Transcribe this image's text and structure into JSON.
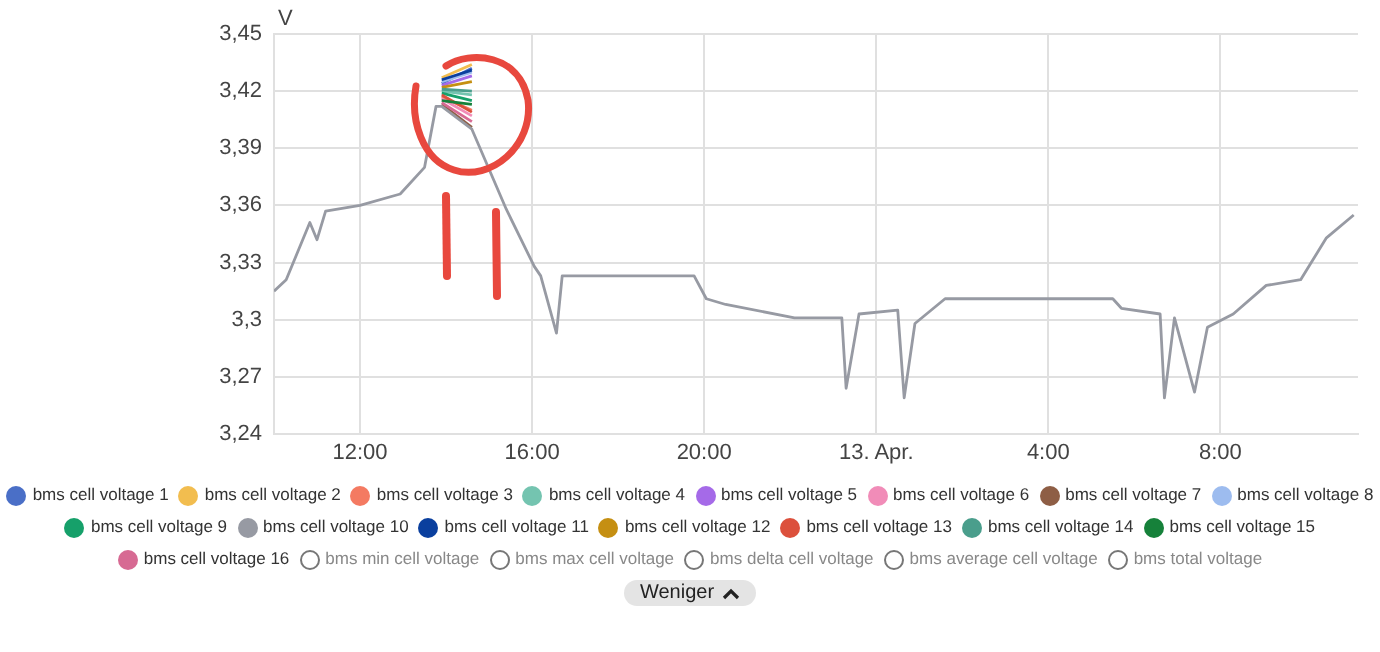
{
  "chart_data": {
    "type": "line",
    "ylabel": "V",
    "annotations": [
      "Weniger"
    ],
    "x": [
      "--04-12T10:00",
      "--04-12T10:17",
      "--04-12T10:50",
      "--04-12T11:00",
      "--04-12T11:12",
      "--04-12T12:00",
      "--04-12T12:56",
      "--04-12T13:30",
      "--04-12T13:46",
      "--04-12T13:54",
      "--04-12T14:36",
      "--04-12T15:24",
      "--04-12T16:03",
      "--04-12T16:12",
      "--04-12T16:34",
      "--04-12T16:42",
      "--04-12T19:46",
      "--04-12T20:03",
      "--04-12T20:30",
      "--04-12T22:06",
      "--04-12T23:12",
      "--04-12T23:18",
      "--04-12T23:36",
      "--04-13T00:30",
      "--04-13T00:39",
      "--04-13T00:54",
      "--04-13T01:36",
      "--04-13T05:30",
      "--04-13T05:42",
      "--04-13T06:36",
      "--04-13T06:42",
      "--04-13T06:56",
      "--04-13T07:24",
      "--04-13T07:42",
      "--04-13T08:18",
      "--04-13T09:04",
      "--04-13T09:52",
      "--04-13T10:28",
      "--04-13T11:06"
    ],
    "xlim": [
      "--04-12T10:00",
      "--04-13T11:12"
    ],
    "xticks": [
      {
        "value": "--04-12T12:00",
        "label": "12:00"
      },
      {
        "value": "--04-12T16:00",
        "label": "16:00"
      },
      {
        "value": "--04-12T20:00",
        "label": "20:00"
      },
      {
        "value": "--04-13T00:00",
        "label": "13. Apr."
      },
      {
        "value": "--04-13T04:00",
        "label": "4:00"
      },
      {
        "value": "--04-13T08:00",
        "label": "8:00"
      }
    ],
    "ylim": [
      3.24,
      3.45
    ],
    "yticks": [
      {
        "value": 3.24,
        "label": "3,24"
      },
      {
        "value": 3.27,
        "label": "3,27"
      },
      {
        "value": 3.3,
        "label": "3,3"
      },
      {
        "value": 3.33,
        "label": "3,33"
      },
      {
        "value": 3.36,
        "label": "3,36"
      },
      {
        "value": 3.39,
        "label": "3,39"
      },
      {
        "value": 3.42,
        "label": "3,42"
      },
      {
        "value": 3.45,
        "label": "3,45"
      }
    ],
    "grid": true,
    "legend": "bottom",
    "marker": "none",
    "line_style": "solid",
    "series": [
      {
        "name": "bms cell voltage 1",
        "color": "#4a6fc7",
        "values": [
          null,
          null,
          null,
          null,
          null,
          null,
          null,
          null,
          null,
          3.424,
          3.432,
          null,
          null,
          null,
          null,
          null,
          null,
          null,
          null,
          null,
          null,
          null,
          null,
          null,
          null,
          null,
          null,
          null,
          null,
          null,
          null,
          null,
          null,
          null,
          null,
          null,
          null,
          null,
          null
        ]
      },
      {
        "name": "bms cell voltage 2",
        "color": "#f2bd4f",
        "values": [
          null,
          null,
          null,
          null,
          null,
          null,
          null,
          null,
          null,
          3.427,
          3.434,
          null,
          null,
          null,
          null,
          null,
          null,
          null,
          null,
          null,
          null,
          null,
          null,
          null,
          null,
          null,
          null,
          null,
          null,
          null,
          null,
          null,
          null,
          null,
          null,
          null,
          null,
          null,
          null
        ]
      },
      {
        "name": "bms cell voltage 3",
        "color": "#f47a62",
        "values": [
          null,
          null,
          null,
          null,
          null,
          null,
          null,
          null,
          null,
          3.417,
          3.41,
          null,
          null,
          null,
          null,
          null,
          null,
          null,
          null,
          null,
          null,
          null,
          null,
          null,
          null,
          null,
          null,
          null,
          null,
          null,
          null,
          null,
          null,
          null,
          null,
          null,
          null,
          null,
          null
        ]
      },
      {
        "name": "bms cell voltage 4",
        "color": "#74c4b0",
        "values": [
          null,
          null,
          null,
          null,
          null,
          null,
          null,
          null,
          null,
          3.42,
          3.418,
          null,
          null,
          null,
          null,
          null,
          null,
          null,
          null,
          null,
          null,
          null,
          null,
          null,
          null,
          null,
          null,
          null,
          null,
          null,
          null,
          null,
          null,
          null,
          null,
          null,
          null,
          null,
          null
        ]
      },
      {
        "name": "bms cell voltage 5",
        "color": "#a56ae8",
        "values": [
          null,
          null,
          null,
          null,
          null,
          null,
          null,
          null,
          null,
          3.423,
          3.428,
          null,
          null,
          null,
          null,
          null,
          null,
          null,
          null,
          null,
          null,
          null,
          null,
          null,
          null,
          null,
          null,
          null,
          null,
          null,
          null,
          null,
          null,
          null,
          null,
          null,
          null,
          null,
          null
        ]
      },
      {
        "name": "bms cell voltage 6",
        "color": "#f18cb8",
        "values": [
          null,
          null,
          null,
          null,
          null,
          null,
          null,
          null,
          null,
          3.416,
          3.407,
          null,
          null,
          null,
          null,
          null,
          null,
          null,
          null,
          null,
          null,
          null,
          null,
          null,
          null,
          null,
          null,
          null,
          null,
          null,
          null,
          null,
          null,
          null,
          null,
          null,
          null,
          null,
          null
        ]
      },
      {
        "name": "bms cell voltage 7",
        "color": "#8e5e45",
        "values": [
          null,
          null,
          null,
          null,
          null,
          null,
          null,
          null,
          null,
          3.413,
          3.401,
          null,
          null,
          null,
          null,
          null,
          null,
          null,
          null,
          null,
          null,
          null,
          null,
          null,
          null,
          null,
          null,
          null,
          null,
          null,
          null,
          null,
          null,
          null,
          null,
          null,
          null,
          null,
          null
        ]
      },
      {
        "name": "bms cell voltage 8",
        "color": "#9dbcef",
        "values": [
          null,
          null,
          null,
          null,
          null,
          null,
          null,
          null,
          null,
          3.425,
          3.43,
          null,
          null,
          null,
          null,
          null,
          null,
          null,
          null,
          null,
          null,
          null,
          null,
          null,
          null,
          null,
          null,
          null,
          null,
          null,
          null,
          null,
          null,
          null,
          null,
          null,
          null,
          null,
          null
        ]
      },
      {
        "name": "bms cell voltage 9",
        "color": "#16a06a",
        "values": [
          null,
          null,
          null,
          null,
          null,
          null,
          null,
          null,
          null,
          3.419,
          3.415,
          null,
          null,
          null,
          null,
          null,
          null,
          null,
          null,
          null,
          null,
          null,
          null,
          null,
          null,
          null,
          null,
          null,
          null,
          null,
          null,
          null,
          null,
          null,
          null,
          null,
          null,
          null,
          null
        ]
      },
      {
        "name": "bms cell voltage 10",
        "color": "#979aa3",
        "values": [
          3.315,
          3.321,
          3.351,
          3.342,
          3.357,
          3.36,
          3.366,
          3.38,
          3.412,
          3.412,
          3.4,
          3.358,
          3.328,
          3.323,
          3.293,
          3.323,
          3.323,
          3.311,
          3.308,
          3.301,
          3.301,
          3.264,
          3.303,
          3.305,
          3.259,
          3.298,
          3.311,
          3.311,
          3.306,
          3.303,
          3.259,
          3.301,
          3.262,
          3.296,
          3.303,
          3.318,
          3.321,
          3.343,
          3.355
        ]
      },
      {
        "name": "bms cell voltage 11",
        "color": "#0a3f9e",
        "values": [
          null,
          null,
          null,
          null,
          null,
          null,
          null,
          null,
          null,
          3.426,
          3.431,
          null,
          null,
          null,
          null,
          null,
          null,
          null,
          null,
          null,
          null,
          null,
          null,
          null,
          null,
          null,
          null,
          null,
          null,
          null,
          null,
          null,
          null,
          null,
          null,
          null,
          null,
          null,
          null
        ]
      },
      {
        "name": "bms cell voltage 12",
        "color": "#c58f12",
        "values": [
          null,
          null,
          null,
          null,
          null,
          null,
          null,
          null,
          null,
          3.422,
          3.425,
          null,
          null,
          null,
          null,
          null,
          null,
          null,
          null,
          null,
          null,
          null,
          null,
          null,
          null,
          null,
          null,
          null,
          null,
          null,
          null,
          null,
          null,
          null,
          null,
          null,
          null,
          null,
          null
        ]
      },
      {
        "name": "bms cell voltage 13",
        "color": "#dc503c",
        "values": [
          null,
          null,
          null,
          null,
          null,
          null,
          null,
          null,
          null,
          3.418,
          3.409,
          null,
          null,
          null,
          null,
          null,
          null,
          null,
          null,
          null,
          null,
          null,
          null,
          null,
          null,
          null,
          null,
          null,
          null,
          null,
          null,
          null,
          null,
          null,
          null,
          null,
          null,
          null,
          null
        ]
      },
      {
        "name": "bms cell voltage 14",
        "color": "#4a9e8c",
        "values": [
          null,
          null,
          null,
          null,
          null,
          null,
          null,
          null,
          null,
          3.421,
          3.42,
          null,
          null,
          null,
          null,
          null,
          null,
          null,
          null,
          null,
          null,
          null,
          null,
          null,
          null,
          null,
          null,
          null,
          null,
          null,
          null,
          null,
          null,
          null,
          null,
          null,
          null,
          null,
          null
        ]
      },
      {
        "name": "bms cell voltage 15",
        "color": "#16813a",
        "values": [
          null,
          null,
          null,
          null,
          null,
          null,
          null,
          null,
          null,
          3.415,
          3.413,
          null,
          null,
          null,
          null,
          null,
          null,
          null,
          null,
          null,
          null,
          null,
          null,
          null,
          null,
          null,
          null,
          null,
          null,
          null,
          null,
          null,
          null,
          null,
          null,
          null,
          null,
          null,
          null
        ]
      },
      {
        "name": "bms cell voltage 16",
        "color": "#d76a93",
        "values": [
          null,
          null,
          null,
          null,
          null,
          null,
          null,
          null,
          null,
          3.414,
          3.404,
          null,
          null,
          null,
          null,
          null,
          null,
          null,
          null,
          null,
          null,
          null,
          null,
          null,
          null,
          null,
          null,
          null,
          null,
          null,
          null,
          null,
          null,
          null,
          null,
          null,
          null,
          null,
          null
        ]
      },
      {
        "name": "bms min cell voltage",
        "values": [
          null,
          null,
          null,
          null,
          null,
          null,
          null,
          null,
          null,
          null,
          null,
          null,
          null,
          null,
          null,
          null,
          null,
          null,
          null,
          null,
          null,
          null,
          null,
          null,
          null,
          null,
          null,
          null,
          null,
          null,
          null,
          null,
          null,
          null,
          null,
          null,
          null,
          null,
          null
        ]
      },
      {
        "name": "bms max cell voltage",
        "values": [
          null,
          null,
          null,
          null,
          null,
          null,
          null,
          null,
          null,
          null,
          null,
          null,
          null,
          null,
          null,
          null,
          null,
          null,
          null,
          null,
          null,
          null,
          null,
          null,
          null,
          null,
          null,
          null,
          null,
          null,
          null,
          null,
          null,
          null,
          null,
          null,
          null,
          null,
          null
        ]
      },
      {
        "name": "bms delta cell voltage",
        "values": [
          null,
          null,
          null,
          null,
          null,
          null,
          null,
          null,
          null,
          null,
          null,
          null,
          null,
          null,
          null,
          null,
          null,
          null,
          null,
          null,
          null,
          null,
          null,
          null,
          null,
          null,
          null,
          null,
          null,
          null,
          null,
          null,
          null,
          null,
          null,
          null,
          null,
          null,
          null
        ]
      },
      {
        "name": "bms average cell voltage",
        "values": [
          null,
          null,
          null,
          null,
          null,
          null,
          null,
          null,
          null,
          null,
          null,
          null,
          null,
          null,
          null,
          null,
          null,
          null,
          null,
          null,
          null,
          null,
          null,
          null,
          null,
          null,
          null,
          null,
          null,
          null,
          null,
          null,
          null,
          null,
          null,
          null,
          null,
          null,
          null
        ]
      },
      {
        "name": "bms total voltage",
        "values": [
          null,
          null,
          null,
          null,
          null,
          null,
          null,
          null,
          null,
          null,
          null,
          null,
          null,
          null,
          null,
          null,
          null,
          null,
          null,
          null,
          null,
          null,
          null,
          null,
          null,
          null,
          null,
          null,
          null,
          null,
          null,
          null,
          null,
          null,
          null,
          null,
          null,
          null,
          null
        ]
      }
    ]
  }
}
